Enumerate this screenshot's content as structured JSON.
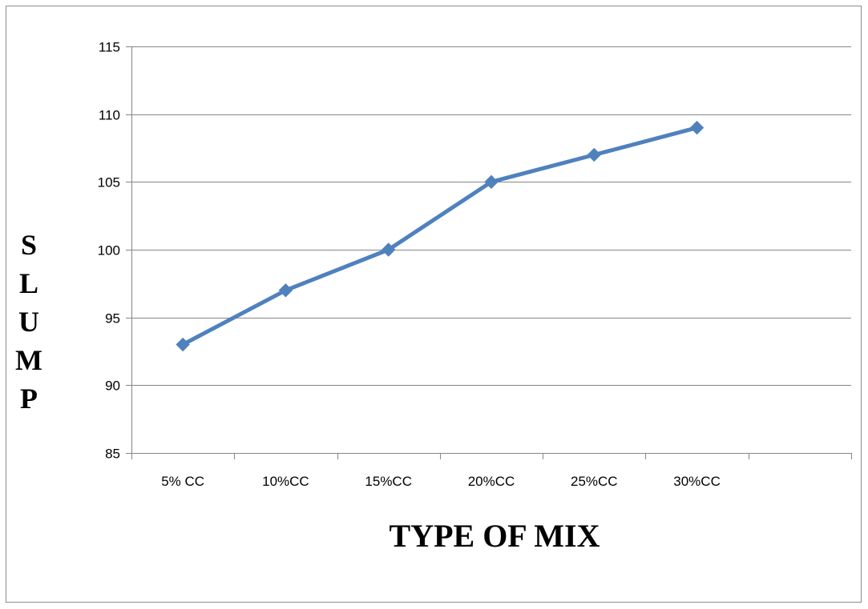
{
  "chart_data": {
    "type": "line",
    "categories": [
      "5% CC",
      "10%CC",
      "15%CC",
      "20%CC",
      "25%CC",
      "30%CC"
    ],
    "series": [
      {
        "values": [
          93,
          97,
          100,
          105,
          107,
          109
        ]
      }
    ],
    "xlabel": "TYPE OF MIX",
    "ylabel": "SLUMP",
    "ylim": [
      85,
      115
    ],
    "yticks": [
      85,
      90,
      95,
      100,
      105,
      110,
      115
    ],
    "grid": "horizontal",
    "legend": "none",
    "colors": {
      "line": "#4f81bd",
      "grid": "#868686",
      "axis": "#868686"
    }
  }
}
